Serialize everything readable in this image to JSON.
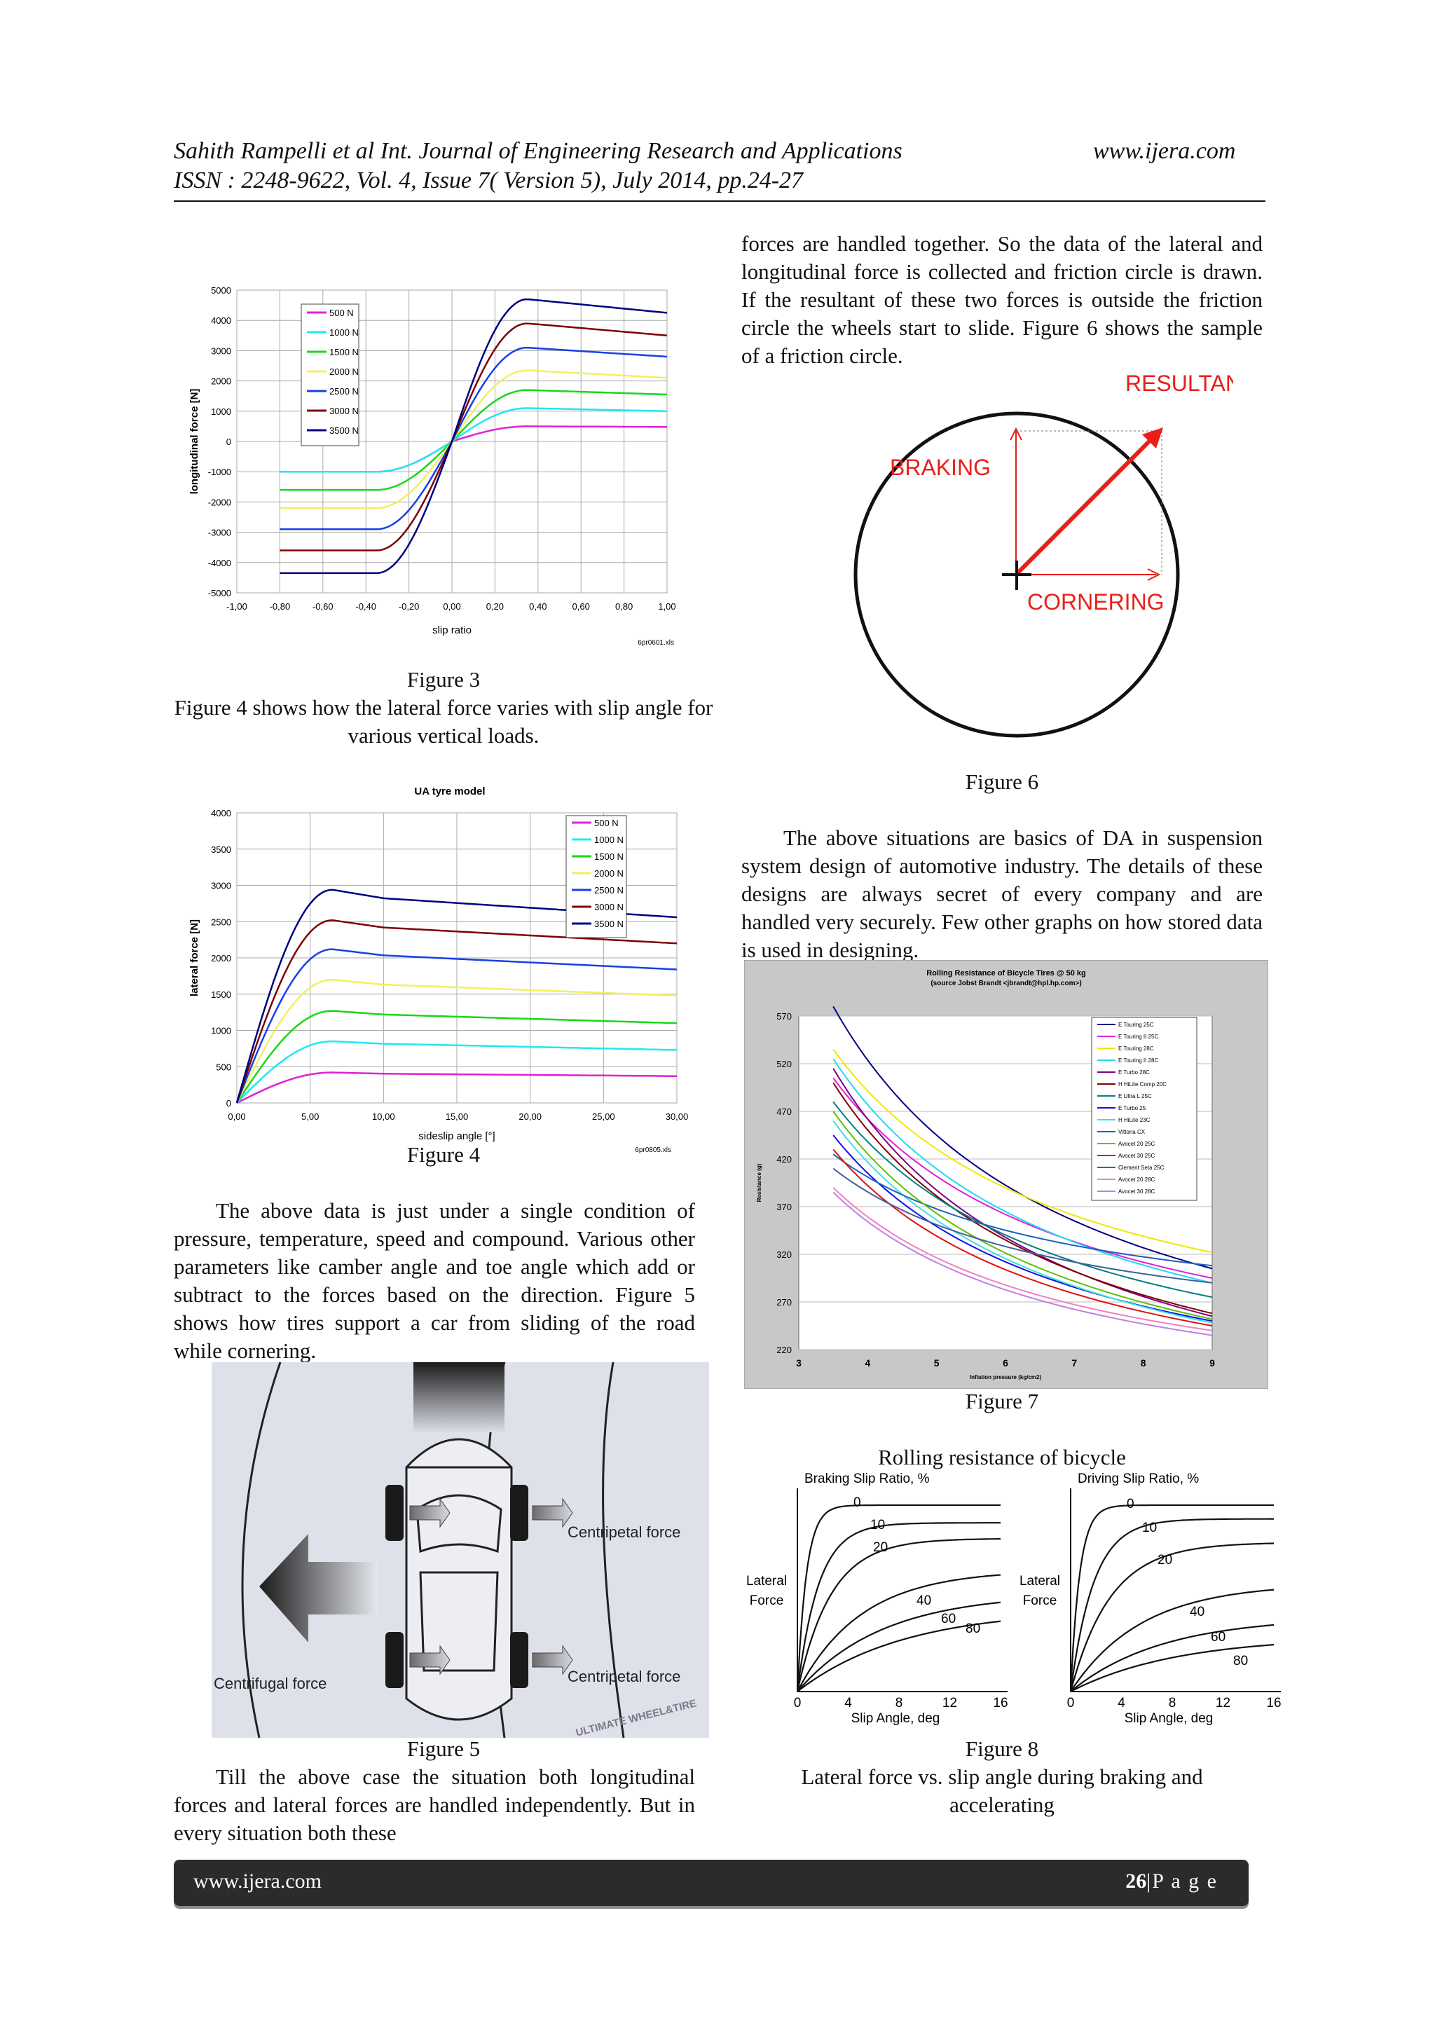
{
  "header": {
    "line1_left": "Sahith Rampelli et al Int. Journal of Engineering Research and Applications",
    "line1_right": "www.ijera.com",
    "line2": "ISSN : 2248-9622, Vol. 4, Issue 7( Version 5), July 2014, pp.24-27"
  },
  "left_column": {
    "figure3_caption": "Figure 3",
    "fig4_intro": "Figure 4 shows how the lateral force varies with slip angle for various vertical loads.",
    "figure4_caption": "Figure 4",
    "paragraph1": "The above data is just under a single condition of pressure, temperature, speed and compound. Various other parameters like camber angle and toe angle which add or subtract to the forces based on the direction. Figure 5 shows how tires support a car from sliding of the road while cornering.",
    "figure5_caption": "Figure 5",
    "paragraph2": "Till the above case the situation both longitudinal forces and lateral forces are handled independently. But in every situation both these"
  },
  "right_column": {
    "paragraph_cont": "forces are handled together. So the data of the lateral and longitudinal force is collected and friction circle is drawn. If the resultant of these two forces is outside the friction circle the wheels start to slide. Figure 6 shows the sample of a friction circle.",
    "figure6_caption": "Figure 6",
    "paragraph3": "The above situations are basics of DA in suspension system design of automotive industry. The details of these designs are always secret of every company and are handled very securely. Few other graphs on how stored data is used in designing.",
    "figure7_caption": "Figure 7",
    "figure8_title": "Rolling resistance of bicycle",
    "figure8_caption": "Figure 8",
    "figure8_desc": "Lateral force vs. slip angle during braking and accelerating"
  },
  "figure6": {
    "resultant": "RESULTANT",
    "braking": "BRAKING",
    "cornering": "CORNERING"
  },
  "figure5": {
    "centripetal_top": "Centripetal force",
    "centripetal_bottom": "Centripetal force",
    "centrifugal": "Centrifugal force",
    "watermark": "ULTIMATE WHEEL&TIRE"
  },
  "footer": {
    "left": "www.ijera.com",
    "page": "26",
    "suffix": "|P a g e"
  },
  "colors": {
    "red": "#e8201a",
    "footer_bg": "#2b2b2b"
  },
  "chart_data": [
    {
      "id": "figure3",
      "type": "line",
      "title": "",
      "xlabel": "slip ratio",
      "ylabel": "longitudinal force [N]",
      "xlim": [
        -1.0,
        1.0
      ],
      "ylim": [
        -5000,
        5000
      ],
      "xticks": [
        "-1,00",
        "-0,80",
        "-0,60",
        "-0,40",
        "-0,20",
        "0,00",
        "0,20",
        "0,40",
        "0,60",
        "0,80",
        "1,00"
      ],
      "yticks": [
        "5000",
        "4000",
        "3000",
        "2000",
        "1000",
        "0",
        "-1000",
        "-2000",
        "-3000",
        "-4000",
        "-5000"
      ],
      "legend": "top-left",
      "note": "6pr0601.xls",
      "series": [
        {
          "name": "500 N",
          "color": "#e020d8",
          "neg_plateau": -1000,
          "peak": 500,
          "end": 480
        },
        {
          "name": "1000 N",
          "color": "#22e8f0",
          "neg_plateau": -1000,
          "peak": 1100,
          "end": 1000
        },
        {
          "name": "1500 N",
          "color": "#18d818",
          "neg_plateau": -1600,
          "peak": 1700,
          "end": 1550
        },
        {
          "name": "2000 N",
          "color": "#f0f060",
          "neg_plateau": -2200,
          "peak": 2350,
          "end": 2100
        },
        {
          "name": "2500 N",
          "color": "#1840e8",
          "neg_plateau": -2900,
          "peak": 3100,
          "end": 2800
        },
        {
          "name": "3000 N",
          "color": "#800000",
          "neg_plateau": -3600,
          "peak": 3900,
          "end": 3500
        },
        {
          "name": "3500 N",
          "color": "#000080",
          "neg_plateau": -4350,
          "peak": 4700,
          "end": 4250
        }
      ]
    },
    {
      "id": "figure4",
      "type": "line",
      "title": "UA tyre model",
      "xlabel": "sideslip angle [°]",
      "ylabel": "lateral force  [N]",
      "xlim": [
        0,
        30
      ],
      "ylim": [
        0,
        4000
      ],
      "xticks": [
        "0,00",
        "5,00",
        "10,00",
        "15,00",
        "20,00",
        "25,00",
        "30,00"
      ],
      "yticks": [
        "4000",
        "3500",
        "3000",
        "2500",
        "2000",
        "1500",
        "1000",
        "500",
        "0"
      ],
      "legend": "top-right",
      "note": "6pr0805.xls",
      "series": [
        {
          "name": "500 N",
          "color": "#e020d8",
          "peak": 420,
          "end": 370
        },
        {
          "name": "1000 N",
          "color": "#22e8f0",
          "peak": 850,
          "end": 730
        },
        {
          "name": "1500 N",
          "color": "#18d818",
          "peak": 1270,
          "end": 1100
        },
        {
          "name": "2000 N",
          "color": "#f0f060",
          "peak": 1700,
          "end": 1480
        },
        {
          "name": "2500 N",
          "color": "#1840e8",
          "peak": 2120,
          "end": 1840
        },
        {
          "name": "3000 N",
          "color": "#800000",
          "peak": 2520,
          "end": 2200
        },
        {
          "name": "3500 N",
          "color": "#000080",
          "peak": 2940,
          "end": 2560
        }
      ]
    },
    {
      "id": "figure7",
      "type": "line",
      "title": "Rolling Resistance of Bicycle Tires @ 50 kg",
      "subtitle": "(source Jobst Brandt <jbrandt@hpl.hp.com>)",
      "xlabel": "Inflation pressure (kg/cm2)",
      "ylabel": "Resistance (g)",
      "xlim": [
        3,
        9
      ],
      "ylim": [
        220,
        570
      ],
      "xticks": [
        "3",
        "4",
        "5",
        "6",
        "7",
        "8",
        "9"
      ],
      "yticks": [
        "570",
        "520",
        "470",
        "420",
        "370",
        "320",
        "270",
        "220"
      ],
      "legend": "right",
      "series": [
        {
          "name": "E Touring 25C",
          "color": "#000080",
          "y35": 580,
          "y9": 305
        },
        {
          "name": "E Touring II 25C",
          "color": "#e020d8",
          "y35": 505,
          "y9": 295
        },
        {
          "name": "E Touring 28C",
          "color": "#f0e800",
          "y35": 535,
          "y9": 322
        },
        {
          "name": "E Touring II 28C",
          "color": "#22d8f0",
          "y35": 525,
          "y9": 290
        },
        {
          "name": "E Turbo 28C",
          "color": "#800080",
          "y35": 515,
          "y9": 255
        },
        {
          "name": "H HiLite Comp 20C",
          "color": "#800000",
          "y35": 500,
          "y9": 258
        },
        {
          "name": "E Ultra L 25C",
          "color": "#008080",
          "y35": 480,
          "y9": 275
        },
        {
          "name": "E Turbo 25",
          "color": "#1010f0",
          "y35": 445,
          "y9": 250
        },
        {
          "name": "H HiLite 23C",
          "color": "#40e0e0",
          "y35": 460,
          "y9": 248
        },
        {
          "name": "Vittoria CX",
          "color": "#2060c0",
          "y35": 425,
          "y9": 308
        },
        {
          "name": "Avocet 20 25C",
          "color": "#60c000",
          "y35": 470,
          "y9": 252
        },
        {
          "name": "Avocet 30 25C",
          "color": "#e01010",
          "y35": 430,
          "y9": 245
        },
        {
          "name": "Clement Seta 25C",
          "color": "#4060a0",
          "y35": 410,
          "y9": 290
        },
        {
          "name": "Avocet 20 28C",
          "color": "#f080c0",
          "y35": 390,
          "y9": 240
        },
        {
          "name": "Avocet 30 28C",
          "color": "#c080e0",
          "y35": 385,
          "y9": 235
        }
      ]
    },
    {
      "id": "figure8",
      "type": "line",
      "panels": [
        {
          "title": "Braking Slip Ratio, %",
          "ylabel": "Lateral Force",
          "xlabel": "Slip Angle, deg",
          "xticks": [
            "0",
            "4",
            "8",
            "12",
            "16"
          ],
          "curves": [
            "0",
            "10",
            "20",
            "40",
            "60",
            "80"
          ]
        },
        {
          "title": "Driving Slip Ratio, %",
          "ylabel": "Lateral Force",
          "xlabel": "Slip Angle, deg",
          "xticks": [
            "0",
            "4",
            "8",
            "12",
            "16"
          ],
          "curves": [
            "0",
            "10",
            "20",
            "40",
            "60",
            "80"
          ]
        }
      ]
    }
  ]
}
